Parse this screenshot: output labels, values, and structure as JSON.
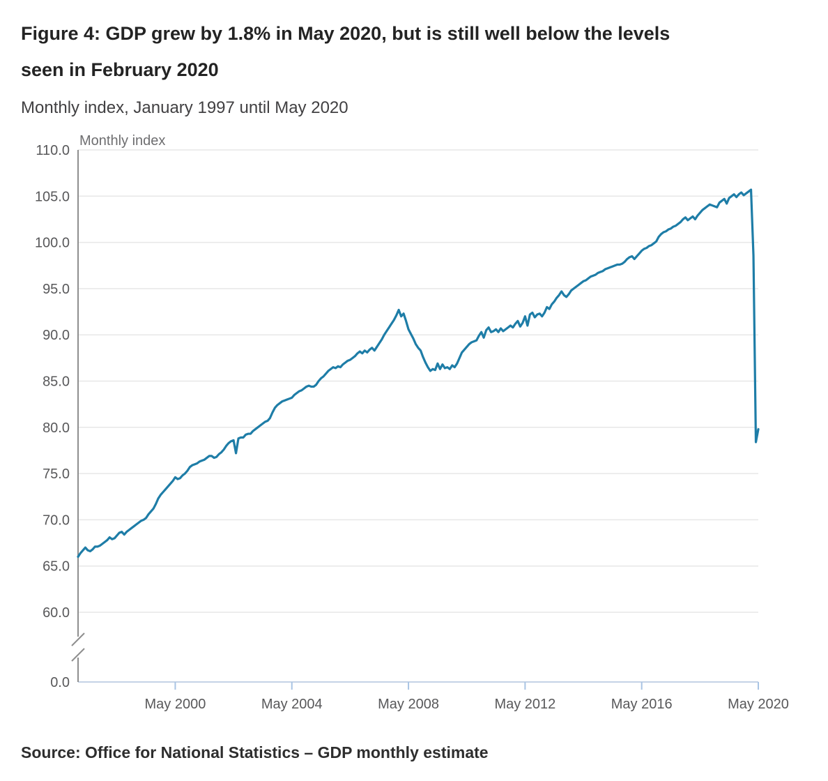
{
  "figure": {
    "title": "Figure 4: GDP grew by 1.8% in May 2020, but is still well below the levels seen in February 2020",
    "subtitle": "Monthly index, January 1997 until May 2020",
    "source": "Source: Office for National Statistics – GDP monthly estimate"
  },
  "chart_data": {
    "type": "line",
    "title": "",
    "axis_title": "Monthly index",
    "xlabel": "",
    "ylabel": "Monthly index",
    "x_start": "1997-01",
    "x_end": "2020-05",
    "x_tick_labels": [
      "May 2000",
      "May 2004",
      "May 2008",
      "May 2012",
      "May 2016",
      "May 2020"
    ],
    "x_tick_month_indices": [
      40,
      88,
      136,
      184,
      232,
      280
    ],
    "y_ticks": [
      110.0,
      105.0,
      100.0,
      95.0,
      90.0,
      85.0,
      80.0,
      75.0,
      70.0,
      65.0,
      60.0
    ],
    "y_zero": 0.0,
    "y_axis_break": true,
    "ylim_display": [
      60,
      110
    ],
    "grid": true,
    "legend": false,
    "colors": {
      "line": "#1e7da7",
      "grid": "#e7e7e7",
      "y_axis": "#8e8e8e",
      "x_axis": "#c4d3e6",
      "x_tick": "#a9c4e4",
      "tick_label": "#58585a",
      "axis_title": "#6e6e70"
    },
    "values": [
      66.0,
      66.4,
      66.7,
      67.0,
      66.7,
      66.6,
      66.8,
      67.1,
      67.1,
      67.2,
      67.4,
      67.6,
      67.8,
      68.1,
      67.9,
      68.0,
      68.3,
      68.6,
      68.7,
      68.4,
      68.7,
      68.9,
      69.1,
      69.3,
      69.5,
      69.7,
      69.9,
      70.0,
      70.2,
      70.6,
      70.9,
      71.2,
      71.7,
      72.3,
      72.7,
      73.0,
      73.3,
      73.6,
      73.9,
      74.2,
      74.6,
      74.4,
      74.5,
      74.8,
      75.0,
      75.3,
      75.7,
      75.9,
      76.0,
      76.1,
      76.3,
      76.4,
      76.5,
      76.7,
      76.9,
      76.9,
      76.7,
      76.8,
      77.1,
      77.3,
      77.6,
      78.0,
      78.3,
      78.5,
      78.6,
      77.2,
      78.8,
      78.9,
      78.9,
      79.2,
      79.3,
      79.3,
      79.6,
      79.8,
      80.0,
      80.2,
      80.4,
      80.6,
      80.7,
      81.0,
      81.6,
      82.1,
      82.4,
      82.6,
      82.8,
      82.9,
      83.0,
      83.1,
      83.2,
      83.5,
      83.7,
      83.9,
      84.0,
      84.2,
      84.4,
      84.5,
      84.4,
      84.4,
      84.6,
      85.0,
      85.3,
      85.5,
      85.8,
      86.1,
      86.3,
      86.5,
      86.4,
      86.6,
      86.5,
      86.8,
      87.0,
      87.2,
      87.3,
      87.5,
      87.7,
      88.0,
      88.2,
      88.0,
      88.3,
      88.1,
      88.4,
      88.6,
      88.3,
      88.7,
      89.1,
      89.5,
      90.0,
      90.4,
      90.8,
      91.2,
      91.6,
      92.1,
      92.7,
      92.0,
      92.3,
      91.5,
      90.6,
      90.1,
      89.6,
      89.0,
      88.6,
      88.3,
      87.6,
      87.0,
      86.5,
      86.1,
      86.3,
      86.2,
      86.9,
      86.3,
      86.8,
      86.4,
      86.5,
      86.3,
      86.7,
      86.5,
      86.9,
      87.5,
      88.1,
      88.4,
      88.7,
      89.0,
      89.2,
      89.3,
      89.4,
      89.9,
      90.3,
      89.7,
      90.5,
      90.8,
      90.3,
      90.4,
      90.6,
      90.3,
      90.7,
      90.4,
      90.6,
      90.8,
      91.0,
      90.8,
      91.2,
      91.5,
      90.9,
      91.3,
      92.0,
      91.0,
      92.2,
      92.4,
      91.9,
      92.2,
      92.3,
      92.0,
      92.4,
      93.0,
      92.8,
      93.3,
      93.6,
      94.0,
      94.3,
      94.7,
      94.3,
      94.1,
      94.4,
      94.8,
      95.0,
      95.2,
      95.4,
      95.6,
      95.8,
      95.9,
      96.1,
      96.3,
      96.4,
      96.5,
      96.7,
      96.8,
      96.9,
      97.1,
      97.2,
      97.3,
      97.4,
      97.5,
      97.6,
      97.6,
      97.7,
      97.9,
      98.2,
      98.4,
      98.5,
      98.2,
      98.5,
      98.8,
      99.1,
      99.3,
      99.4,
      99.6,
      99.7,
      99.9,
      100.1,
      100.6,
      100.9,
      101.1,
      101.2,
      101.4,
      101.5,
      101.7,
      101.8,
      102.0,
      102.2,
      102.5,
      102.7,
      102.4,
      102.6,
      102.8,
      102.5,
      102.9,
      103.2,
      103.5,
      103.7,
      103.9,
      104.1,
      104.0,
      103.9,
      103.8,
      104.3,
      104.5,
      104.7,
      104.2,
      104.8,
      105.0,
      105.2,
      104.9,
      105.2,
      105.4,
      105.1,
      105.3,
      105.5,
      105.7,
      98.6,
      78.4,
      79.8
    ]
  }
}
